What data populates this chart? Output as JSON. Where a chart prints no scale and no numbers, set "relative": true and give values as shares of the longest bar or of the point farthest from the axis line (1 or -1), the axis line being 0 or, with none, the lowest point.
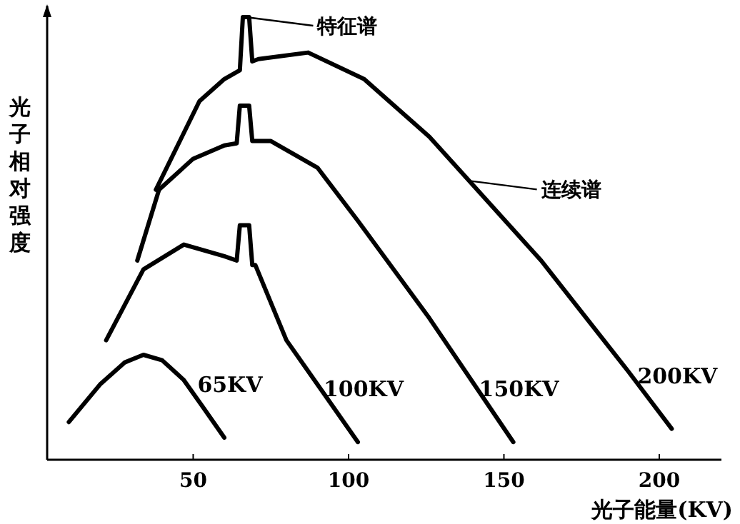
{
  "chart_data": {
    "type": "line",
    "xlabel": "光子能量(KV)",
    "ylabel": "光子相对强度",
    "relative": true,
    "xlim": [
      3,
      220
    ],
    "xticks": [
      50,
      100,
      150,
      200
    ],
    "annotations": [
      {
        "text": "特征谱",
        "x": 67,
        "y": 1.0
      },
      {
        "text": "连续谱",
        "x": 139,
        "y": 0.63
      }
    ],
    "series": [
      {
        "name": "65KV",
        "color": "#000000",
        "x": [
          10,
          20,
          28,
          34,
          40,
          47,
          53,
          60
        ],
        "values": [
          0.085,
          0.17,
          0.22,
          0.237,
          0.225,
          0.18,
          0.12,
          0.05
        ]
      },
      {
        "name": "100KV",
        "color": "#000000",
        "x": [
          22,
          34,
          47,
          60,
          64,
          65,
          68,
          69,
          70,
          80,
          92,
          103
        ],
        "values": [
          0.27,
          0.43,
          0.486,
          0.46,
          0.45,
          0.53,
          0.53,
          0.44,
          0.44,
          0.27,
          0.15,
          0.04
        ]
      },
      {
        "name": "150KV",
        "color": "#000000",
        "x": [
          32,
          39,
          50,
          60,
          64,
          65,
          68,
          69,
          75,
          90,
          103,
          126,
          153
        ],
        "values": [
          0.45,
          0.61,
          0.68,
          0.71,
          0.715,
          0.8,
          0.8,
          0.72,
          0.72,
          0.66,
          0.54,
          0.32,
          0.04
        ]
      },
      {
        "name": "200KV",
        "color": "#000000",
        "x": [
          38,
          52,
          60,
          65,
          66,
          68,
          69,
          71,
          87,
          105,
          126,
          162,
          190,
          204
        ],
        "values": [
          0.61,
          0.81,
          0.86,
          0.88,
          1.0,
          1.0,
          0.9,
          0.905,
          0.92,
          0.86,
          0.73,
          0.45,
          0.2,
          0.07
        ]
      }
    ]
  }
}
